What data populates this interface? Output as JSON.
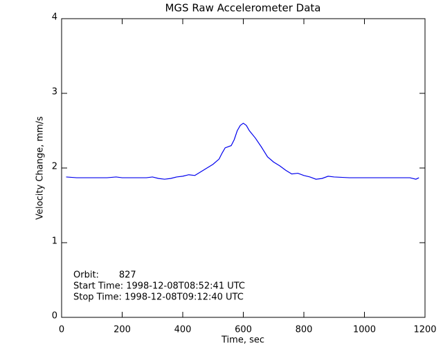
{
  "chart_data": {
    "type": "line",
    "title": "MGS Raw Accelerometer Data",
    "xlabel": "Time, sec",
    "ylabel": "Velocity Change, mm/s",
    "x": [
      15,
      50,
      100,
      150,
      180,
      200,
      250,
      280,
      300,
      320,
      340,
      360,
      380,
      400,
      420,
      440,
      460,
      480,
      500,
      520,
      530,
      540,
      560,
      570,
      580,
      590,
      600,
      610,
      620,
      640,
      660,
      680,
      700,
      720,
      740,
      760,
      780,
      800,
      820,
      840,
      860,
      880,
      900,
      950,
      1000,
      1050,
      1100,
      1150,
      1170,
      1180
    ],
    "series": [
      {
        "name": "Velocity Change",
        "color": "#0000ee",
        "values": [
          1.88,
          1.87,
          1.87,
          1.87,
          1.88,
          1.87,
          1.87,
          1.87,
          1.88,
          1.86,
          1.85,
          1.86,
          1.88,
          1.89,
          1.91,
          1.9,
          1.95,
          2.0,
          2.05,
          2.12,
          2.2,
          2.27,
          2.3,
          2.38,
          2.5,
          2.57,
          2.6,
          2.57,
          2.5,
          2.4,
          2.28,
          2.15,
          2.08,
          2.03,
          1.97,
          1.92,
          1.93,
          1.9,
          1.88,
          1.85,
          1.86,
          1.89,
          1.88,
          1.87,
          1.87,
          1.87,
          1.87,
          1.87,
          1.85,
          1.87
        ]
      }
    ],
    "xlim": [
      0,
      1200
    ],
    "xticks": [
      0,
      200,
      400,
      600,
      800,
      1000,
      1200
    ],
    "ylim": [
      0,
      4
    ],
    "yticks": [
      0,
      1,
      2,
      3,
      4
    ],
    "annotations": [
      "Orbit:       827",
      "Start Time: 1998-12-08T08:52:41 UTC",
      "Stop Time: 1998-12-08T09:12:40 UTC"
    ]
  }
}
